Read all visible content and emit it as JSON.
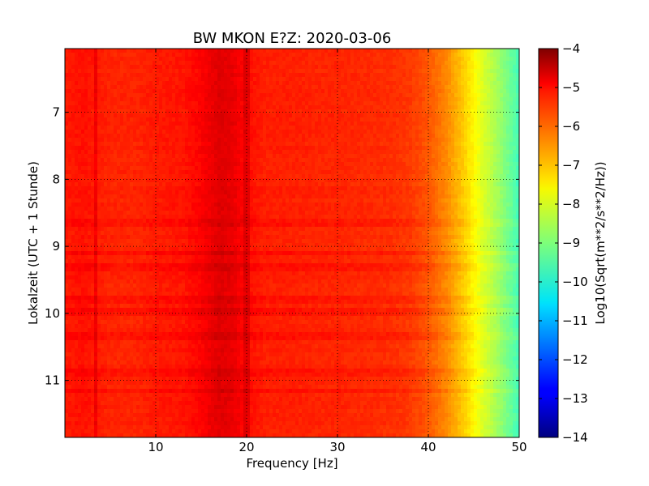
{
  "chart_data": {
    "type": "heatmap",
    "title": "BW MKON E?Z: 2020-03-06",
    "xlabel": "Frequency [Hz]",
    "ylabel": "Lokalzeit (UTC + 1 Stunde)",
    "xlim": [
      0,
      50
    ],
    "ylim": [
      11.85,
      6.05
    ],
    "x_ticks": [
      10,
      20,
      30,
      40,
      50
    ],
    "x_tick_labels": [
      "10",
      "20",
      "30",
      "40",
      "50"
    ],
    "y_ticks": [
      7,
      8,
      9,
      10,
      11
    ],
    "y_tick_labels": [
      "7",
      "8",
      "9",
      "10",
      "11"
    ],
    "grid": true,
    "colormap": "jet",
    "colorbar": {
      "label": "Log10(Sqrt(m**2/s**2/Hz))",
      "range": [
        -14,
        -4
      ],
      "ticks": [
        -4,
        -5,
        -6,
        -7,
        -8,
        -9,
        -10,
        -11,
        -12,
        -13,
        -14
      ],
      "tick_labels": [
        "−4",
        "−5",
        "−6",
        "−7",
        "−8",
        "−9",
        "−10",
        "−11",
        "−12",
        "−13",
        "−14"
      ]
    },
    "spectrum_profile": {
      "frequency_hz": [
        0,
        2,
        5,
        8,
        10,
        13,
        15,
        17,
        18.5,
        20,
        22,
        25,
        28,
        30,
        33,
        36,
        38,
        40,
        42,
        44,
        46,
        48,
        50
      ],
      "log10_amplitude": [
        -5.5,
        -5.4,
        -5.6,
        -5.6,
        -5.5,
        -5.45,
        -5.25,
        -4.95,
        -5.05,
        -5.35,
        -5.55,
        -5.55,
        -5.6,
        -5.6,
        -5.65,
        -5.7,
        -5.8,
        -6.1,
        -6.6,
        -7.3,
        -8.1,
        -8.8,
        -9.6
      ]
    },
    "narrowband_lines_hz": [
      3.5,
      20
    ],
    "band_times": [
      8.65,
      9.1,
      9.3,
      9.8,
      10.0,
      10.35,
      10.88,
      11.15
    ]
  }
}
